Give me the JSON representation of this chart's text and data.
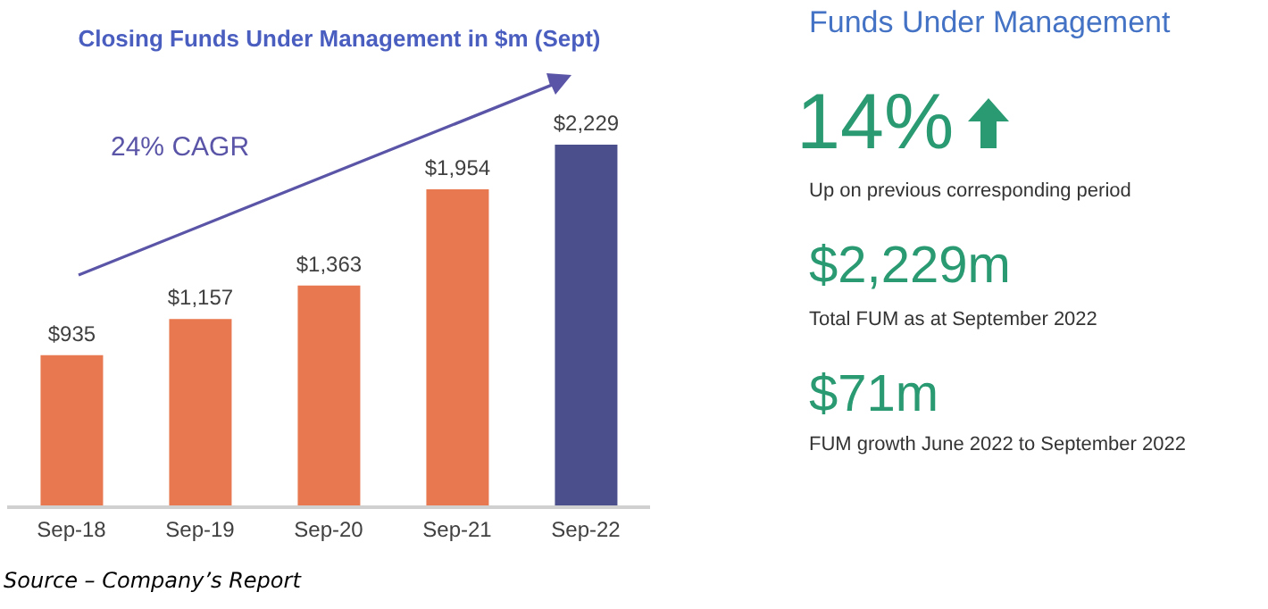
{
  "chart_data": [
    {
      "type": "bar",
      "title": "Closing Funds Under Management in $m (Sept)",
      "categories": [
        "Sep-18",
        "Sep-19",
        "Sep-20",
        "Sep-21",
        "Sep-22"
      ],
      "values": [
        935,
        1157,
        1363,
        1954,
        2229
      ],
      "value_labels": [
        "$935",
        "$1,157",
        "$1,363",
        "$1,954",
        "$2,229"
      ],
      "colors": [
        "#e8784f",
        "#e8784f",
        "#e8784f",
        "#e8784f",
        "#4b4f8c"
      ],
      "annotations": [
        "24% CAGR",
        "Source – Company’s Report"
      ]
    },
    {
      "type": "other",
      "title": "Funds Under Management",
      "annotations": [
        "14%",
        "Up on previous corresponding period",
        "$2,229m",
        "Total FUM as at September 2022",
        "$71m",
        "FUM growth June 2022 to September 2022"
      ]
    }
  ]
}
